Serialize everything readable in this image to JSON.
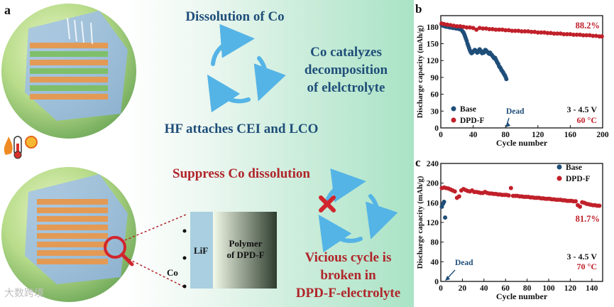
{
  "panel_a": {
    "label": "a",
    "texts": {
      "dissolution": "Dissolution of Co",
      "catalyzes_1": "Co catalyzes",
      "catalyzes_2": "decomposition",
      "catalyzes_3": "of elelctrolyte",
      "hf": "HF attaches CEI and LCO",
      "suppress": "Suppress  Co dissolution",
      "vicious_1": "Vicious cycle is",
      "vicious_2": "broken in",
      "vicious_3": "DPD-F-electrolyte",
      "lif": "LiF",
      "polymer_1": "Polymer",
      "polymer_2": "of DPD-F",
      "co": "Co"
    }
  },
  "watermark": "大数跨境",
  "chart_data": [
    {
      "id": "b",
      "type": "scatter",
      "panel_label": "b",
      "xlabel": "Cycle number",
      "ylabel": "Discharge capacity (mAh/g)",
      "xlim": [
        0,
        200
      ],
      "ylim": [
        0,
        200
      ],
      "xticks": [
        0,
        40,
        80,
        120,
        160,
        200
      ],
      "yticks": [
        0,
        30,
        60,
        90,
        120,
        150,
        180
      ],
      "series": [
        {
          "name": "Base",
          "color": "#1f4e79",
          "x": [
            1,
            3,
            5,
            7,
            9,
            11,
            13,
            15,
            17,
            19,
            21,
            23,
            25,
            27,
            28,
            29,
            30,
            31,
            32,
            33,
            34,
            35,
            36,
            37,
            38,
            39,
            40,
            41,
            42,
            43,
            44,
            45,
            46,
            47,
            48,
            49,
            50,
            51,
            52,
            53,
            54,
            55,
            56,
            57,
            58,
            59,
            60,
            61,
            62,
            63,
            64,
            65,
            66,
            67,
            68,
            69,
            70,
            71,
            72,
            73,
            74,
            75,
            76,
            77,
            78,
            79,
            80,
            81
          ],
          "y": [
            184,
            182,
            181,
            180,
            180,
            179,
            179,
            178,
            178,
            177,
            177,
            176,
            175,
            172,
            170,
            167,
            163,
            159,
            155,
            150,
            146,
            142,
            138,
            135,
            133,
            134,
            136,
            137,
            139,
            138,
            136,
            134,
            135,
            137,
            140,
            138,
            136,
            133,
            135,
            134,
            137,
            139,
            138,
            136,
            135,
            133,
            132,
            134,
            131,
            130,
            128,
            126,
            124,
            125,
            122,
            119,
            116,
            114,
            110,
            108,
            106,
            103,
            101,
            99,
            96,
            94,
            91,
            87
          ]
        },
        {
          "name": "DPD-F",
          "color": "#c0202a",
          "x": [
            1,
            4,
            8,
            12,
            16,
            20,
            24,
            28,
            32,
            36,
            40,
            44,
            48,
            52,
            56,
            60,
            64,
            68,
            72,
            76,
            80,
            84,
            88,
            92,
            96,
            100,
            104,
            108,
            112,
            116,
            120,
            124,
            128,
            132,
            136,
            140,
            144,
            148,
            152,
            156,
            160,
            164,
            168,
            172,
            176,
            180,
            184,
            188,
            192,
            196,
            199
          ],
          "y": [
            186,
            185,
            184,
            183,
            182,
            181,
            181,
            180,
            179,
            179,
            178,
            175,
            178,
            177,
            177,
            176,
            176,
            175,
            175,
            175,
            174,
            174,
            173,
            173,
            173,
            172,
            172,
            172,
            171,
            171,
            170,
            170,
            170,
            169,
            169,
            168,
            168,
            168,
            167,
            167,
            167,
            166,
            166,
            166,
            165,
            165,
            165,
            164,
            164,
            163,
            163
          ]
        }
      ],
      "annotations": {
        "dead": "Dead",
        "retention": "88.2%",
        "voltage": "3 - 4.5 V",
        "temperature": "60 °C"
      },
      "dead_point": {
        "x": 80,
        "y": 0
      },
      "legend": "bottom-left"
    },
    {
      "id": "c",
      "type": "scatter",
      "panel_label": "c",
      "xlabel": "Cycle number",
      "ylabel": "Discharge capacity (mAh/g)",
      "xlim": [
        0,
        150
      ],
      "ylim": [
        0,
        240
      ],
      "xticks": [
        0,
        20,
        40,
        60,
        80,
        100,
        120,
        140
      ],
      "yticks": [
        0,
        40,
        80,
        120,
        160,
        200,
        240
      ],
      "series": [
        {
          "name": "Base",
          "color": "#1f4e79",
          "x": [
            1,
            2,
            3,
            4
          ],
          "y": [
            152,
            158,
            162,
            130
          ]
        },
        {
          "name": "DPD-F",
          "color": "#c0202a",
          "x": [
            1,
            3,
            5,
            7,
            9,
            11,
            13,
            15,
            17,
            19,
            21,
            23,
            25,
            27,
            29,
            31,
            33,
            35,
            37,
            39,
            41,
            43,
            45,
            47,
            49,
            51,
            53,
            55,
            57,
            59,
            61,
            63,
            65,
            67,
            69,
            71,
            73,
            75,
            77,
            79,
            81,
            83,
            85,
            87,
            89,
            91,
            93,
            95,
            97,
            99,
            101,
            103,
            105,
            107,
            109,
            111,
            113,
            115,
            117,
            119,
            121,
            123,
            125,
            127,
            129,
            131,
            133,
            135,
            137,
            139,
            141,
            143,
            145,
            147
          ],
          "y": [
            190,
            191,
            190,
            189,
            187,
            185,
            183,
            170,
            173,
            185,
            188,
            186,
            184,
            183,
            185,
            182,
            182,
            181,
            180,
            180,
            182,
            180,
            179,
            179,
            178,
            178,
            177,
            177,
            176,
            176,
            176,
            175,
            190,
            174,
            174,
            174,
            173,
            173,
            172,
            172,
            172,
            171,
            171,
            170,
            170,
            170,
            169,
            169,
            168,
            168,
            168,
            167,
            167,
            166,
            166,
            166,
            165,
            165,
            164,
            164,
            164,
            163,
            163,
            155,
            152,
            161,
            160,
            158,
            157,
            156,
            155,
            155,
            154,
            154
          ]
        }
      ],
      "annotations": {
        "dead": "Dead",
        "retention": "81.7%",
        "voltage": "3 - 4.5 V",
        "temperature": "70 °C"
      },
      "dead_point": {
        "x": 4,
        "y": 0
      },
      "legend": "top-right"
    }
  ]
}
